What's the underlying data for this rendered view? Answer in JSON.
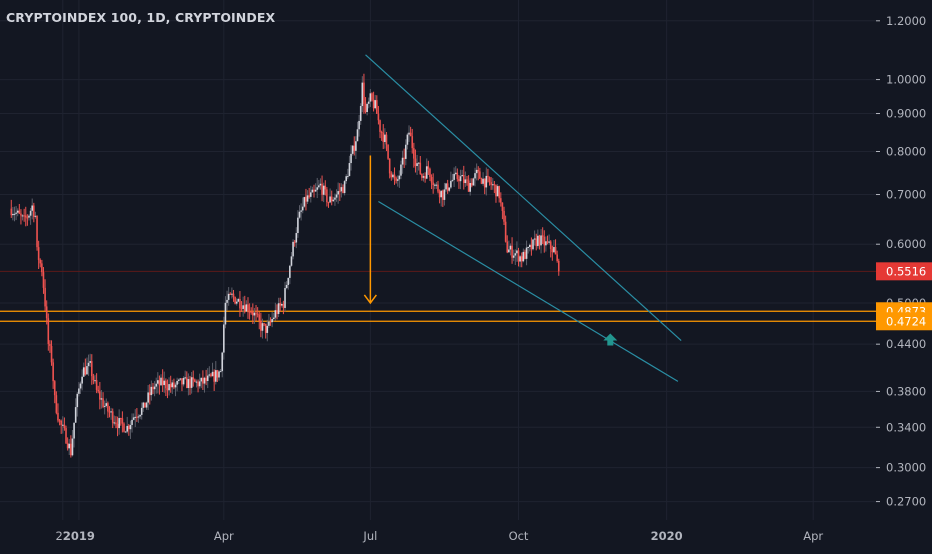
{
  "header": {
    "title": "CRYPTOINDEX 100, 1D, CRYPTOINDEX"
  },
  "colors": {
    "background": "#131722",
    "grid": "#1f2330",
    "up_candle": "#d1d4dc",
    "up_wick": "#5d606b",
    "down_candle": "#ef5350",
    "trendline": "#2a8ea4",
    "horizontal_level": "#ff9800",
    "last_price_line": "#5c1a1a",
    "last_price_badge": "#e53935",
    "target_arrow": "#ff9800",
    "up_marker": "#22968f",
    "axis_text": "#b2b5be"
  },
  "chart_data": {
    "type": "candlestick",
    "title": "CRYPTOINDEX 100, 1D, CRYPTOINDEX",
    "y_scale": "log",
    "ylim": [
      0.255,
      1.28
    ],
    "y_ticks": [
      "1.2000",
      "1.0000",
      "0.9000",
      "0.8000",
      "0.7000",
      "0.6000",
      "0.5000",
      "0.4400",
      "0.3800",
      "0.3400",
      "0.3000",
      "0.2700"
    ],
    "x_range": [
      "2018-11-13",
      "2020-05-10"
    ],
    "x_ticks": [
      {
        "label": "22",
        "date": "2018-12-22"
      },
      {
        "label": "2019",
        "date": "2019-01-01"
      },
      {
        "label": "Apr",
        "date": "2019-04-01"
      },
      {
        "label": "Jul",
        "date": "2019-07-01"
      },
      {
        "label": "Oct",
        "date": "2019-10-01"
      },
      {
        "label": "2020",
        "date": "2020-01-01"
      },
      {
        "label": "Apr",
        "date": "2020-04-01"
      }
    ],
    "price_path": [
      [
        "2018-11-20",
        0.67
      ],
      [
        "2018-11-28",
        0.645
      ],
      [
        "2018-12-01",
        0.66
      ],
      [
        "2018-12-03",
        0.675
      ],
      [
        "2018-12-05",
        0.655
      ],
      [
        "2018-12-06",
        0.585
      ],
      [
        "2018-12-09",
        0.555
      ],
      [
        "2018-12-11",
        0.5
      ],
      [
        "2018-12-13",
        0.44
      ],
      [
        "2018-12-15",
        0.42
      ],
      [
        "2018-12-17",
        0.37
      ],
      [
        "2018-12-20",
        0.345
      ],
      [
        "2018-12-24",
        0.33
      ],
      [
        "2018-12-27",
        0.315
      ],
      [
        "2018-12-30",
        0.36
      ],
      [
        "2019-01-03",
        0.405
      ],
      [
        "2019-01-08",
        0.41
      ],
      [
        "2019-01-12",
        0.38
      ],
      [
        "2019-01-18",
        0.36
      ],
      [
        "2019-01-25",
        0.345
      ],
      [
        "2019-01-31",
        0.34
      ],
      [
        "2019-02-05",
        0.355
      ],
      [
        "2019-02-10",
        0.36
      ],
      [
        "2019-02-16",
        0.385
      ],
      [
        "2019-02-22",
        0.39
      ],
      [
        "2019-02-28",
        0.385
      ],
      [
        "2019-03-06",
        0.39
      ],
      [
        "2019-03-12",
        0.39
      ],
      [
        "2019-03-18",
        0.39
      ],
      [
        "2019-03-24",
        0.395
      ],
      [
        "2019-03-30",
        0.405
      ],
      [
        "2019-04-02",
        0.5
      ],
      [
        "2019-04-06",
        0.51
      ],
      [
        "2019-04-12",
        0.5
      ],
      [
        "2019-04-18",
        0.49
      ],
      [
        "2019-04-24",
        0.465
      ],
      [
        "2019-04-28",
        0.46
      ],
      [
        "2019-05-03",
        0.485
      ],
      [
        "2019-05-08",
        0.5
      ],
      [
        "2019-05-13",
        0.58
      ],
      [
        "2019-05-17",
        0.645
      ],
      [
        "2019-05-22",
        0.69
      ],
      [
        "2019-05-27",
        0.7
      ],
      [
        "2019-05-31",
        0.72
      ],
      [
        "2019-06-05",
        0.685
      ],
      [
        "2019-06-10",
        0.7
      ],
      [
        "2019-06-15",
        0.72
      ],
      [
        "2019-06-20",
        0.8
      ],
      [
        "2019-06-23",
        0.85
      ],
      [
        "2019-06-26",
        0.98
      ],
      [
        "2019-06-28",
        0.9
      ],
      [
        "2019-07-01",
        0.94
      ],
      [
        "2019-07-04",
        0.92
      ],
      [
        "2019-07-07",
        0.86
      ],
      [
        "2019-07-10",
        0.83
      ],
      [
        "2019-07-13",
        0.76
      ],
      [
        "2019-07-17",
        0.72
      ],
      [
        "2019-07-21",
        0.77
      ],
      [
        "2019-07-25",
        0.85
      ],
      [
        "2019-07-29",
        0.78
      ],
      [
        "2019-08-02",
        0.74
      ],
      [
        "2019-08-06",
        0.76
      ],
      [
        "2019-08-10",
        0.72
      ],
      [
        "2019-08-15",
        0.7
      ],
      [
        "2019-08-20",
        0.73
      ],
      [
        "2019-08-25",
        0.74
      ],
      [
        "2019-08-31",
        0.72
      ],
      [
        "2019-09-05",
        0.745
      ],
      [
        "2019-09-10",
        0.73
      ],
      [
        "2019-09-15",
        0.72
      ],
      [
        "2019-09-19",
        0.7
      ],
      [
        "2019-09-24",
        0.59
      ],
      [
        "2019-09-28",
        0.585
      ],
      [
        "2019-10-03",
        0.575
      ],
      [
        "2019-10-08",
        0.59
      ],
      [
        "2019-10-13",
        0.61
      ],
      [
        "2019-10-18",
        0.6
      ],
      [
        "2019-10-23",
        0.59
      ],
      [
        "2019-10-26",
        0.5516
      ]
    ],
    "last_price": "0.5516",
    "horizontal_levels": [
      "0.4873",
      "0.4724"
    ],
    "trendlines": [
      {
        "from": {
          "date": "2019-06-28",
          "price": 1.08
        },
        "to": {
          "date": "2020-01-10",
          "price": 0.445
        }
      },
      {
        "from": {
          "date": "2019-07-06",
          "price": 0.685
        },
        "to": {
          "date": "2020-01-08",
          "price": 0.392
        }
      }
    ],
    "annotations": [
      {
        "type": "arrow-down",
        "from": {
          "date": "2019-07-01",
          "price": 0.79
        },
        "to": {
          "date": "2019-07-01",
          "price": 0.5
        }
      },
      {
        "type": "arrow-up",
        "at": {
          "date": "2019-11-27",
          "price": 0.445
        }
      }
    ]
  }
}
